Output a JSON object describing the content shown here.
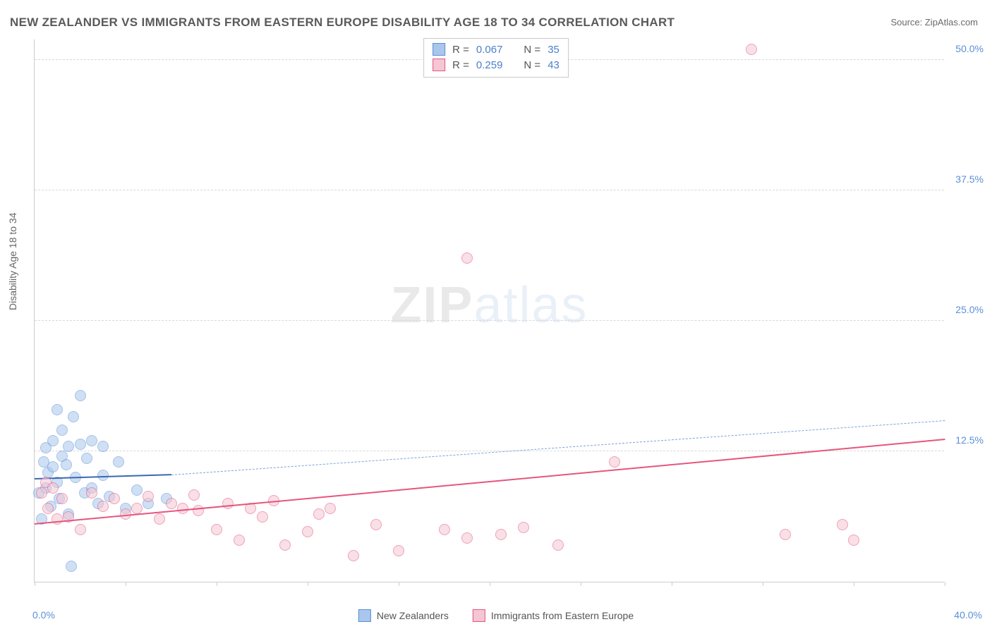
{
  "title": "NEW ZEALANDER VS IMMIGRANTS FROM EASTERN EUROPE DISABILITY AGE 18 TO 34 CORRELATION CHART",
  "source_label": "Source: ZipAtlas.com",
  "ylabel": "Disability Age 18 to 34",
  "watermark": {
    "part1": "ZIP",
    "part2": "atlas"
  },
  "chart": {
    "type": "scatter",
    "xlim": [
      0,
      40
    ],
    "ylim": [
      0,
      52
    ],
    "x_ticks": [
      0,
      4,
      8,
      12,
      16,
      20,
      24,
      28,
      32,
      36,
      40
    ],
    "y_gridlines": [
      12.5,
      25.0,
      37.5,
      50.0
    ],
    "y_tick_labels": [
      "12.5%",
      "25.0%",
      "37.5%",
      "50.0%"
    ],
    "x_min_label": "0.0%",
    "x_max_label": "40.0%",
    "grid_color": "#d8d8d8",
    "axis_color": "#cccccc",
    "tick_label_color": "#5b8fd6",
    "point_radius": 8,
    "point_opacity": 0.55
  },
  "series": [
    {
      "key": "nz",
      "label": "New Zealanders",
      "R": "0.067",
      "N": "35",
      "fill": "#a9c7ec",
      "stroke": "#5b8fd6",
      "line_color": "#3a68b3",
      "dash_color": "#7aa2d8",
      "trend": {
        "x1": 0,
        "y1": 9.8,
        "x2": 6.0,
        "y2": 10.2
      },
      "trend_ext": {
        "x1": 6.0,
        "y1": 10.2,
        "x2": 40,
        "y2": 15.4
      },
      "points": [
        [
          0.2,
          8.5
        ],
        [
          0.3,
          6.0
        ],
        [
          0.4,
          11.5
        ],
        [
          0.5,
          9.0
        ],
        [
          0.5,
          12.8
        ],
        [
          0.6,
          10.5
        ],
        [
          0.7,
          7.2
        ],
        [
          0.8,
          11.0
        ],
        [
          0.8,
          13.5
        ],
        [
          1.0,
          9.5
        ],
        [
          1.0,
          16.5
        ],
        [
          1.1,
          8.0
        ],
        [
          1.2,
          12.0
        ],
        [
          1.2,
          14.5
        ],
        [
          1.4,
          11.2
        ],
        [
          1.5,
          6.5
        ],
        [
          1.5,
          13.0
        ],
        [
          1.6,
          1.5
        ],
        [
          1.7,
          15.8
        ],
        [
          1.8,
          10.0
        ],
        [
          2.0,
          13.2
        ],
        [
          2.0,
          17.8
        ],
        [
          2.2,
          8.5
        ],
        [
          2.3,
          11.8
        ],
        [
          2.5,
          9.0
        ],
        [
          2.5,
          13.5
        ],
        [
          2.8,
          7.5
        ],
        [
          3.0,
          10.2
        ],
        [
          3.0,
          13.0
        ],
        [
          3.3,
          8.2
        ],
        [
          3.7,
          11.5
        ],
        [
          4.0,
          7.0
        ],
        [
          4.5,
          8.8
        ],
        [
          5.0,
          7.5
        ],
        [
          5.8,
          8.0
        ]
      ]
    },
    {
      "key": "ee",
      "label": "Immigrants from Eastern Europe",
      "R": "0.259",
      "N": "43",
      "fill": "#f5c6d3",
      "stroke": "#e5567e",
      "line_color": "#e5567e",
      "trend": {
        "x1": 0,
        "y1": 5.5,
        "x2": 40,
        "y2": 13.6
      },
      "points": [
        [
          0.3,
          8.5
        ],
        [
          0.5,
          9.5
        ],
        [
          0.6,
          7.0
        ],
        [
          0.8,
          9.0
        ],
        [
          1.0,
          6.0
        ],
        [
          1.2,
          8.0
        ],
        [
          1.5,
          6.2
        ],
        [
          2.0,
          5.0
        ],
        [
          2.5,
          8.5
        ],
        [
          3.0,
          7.2
        ],
        [
          3.5,
          8.0
        ],
        [
          4.0,
          6.5
        ],
        [
          4.5,
          7.0
        ],
        [
          5.0,
          8.2
        ],
        [
          5.5,
          6.0
        ],
        [
          6.0,
          7.5
        ],
        [
          6.5,
          7.0
        ],
        [
          7.0,
          8.3
        ],
        [
          7.2,
          6.8
        ],
        [
          8.0,
          5.0
        ],
        [
          8.5,
          7.5
        ],
        [
          9.0,
          4.0
        ],
        [
          9.5,
          7.0
        ],
        [
          10.0,
          6.2
        ],
        [
          10.5,
          7.8
        ],
        [
          11.0,
          3.5
        ],
        [
          12.0,
          4.8
        ],
        [
          12.5,
          6.5
        ],
        [
          13.0,
          7.0
        ],
        [
          14.0,
          2.5
        ],
        [
          15.0,
          5.5
        ],
        [
          16.0,
          3.0
        ],
        [
          18.0,
          5.0
        ],
        [
          19.0,
          4.2
        ],
        [
          19.0,
          31.0
        ],
        [
          20.5,
          4.5
        ],
        [
          21.5,
          5.2
        ],
        [
          23.0,
          3.5
        ],
        [
          25.5,
          11.5
        ],
        [
          31.5,
          51.0
        ],
        [
          33.0,
          4.5
        ],
        [
          35.5,
          5.5
        ],
        [
          36.0,
          4.0
        ]
      ]
    }
  ],
  "stats_labels": {
    "R": "R =",
    "N": "N ="
  }
}
